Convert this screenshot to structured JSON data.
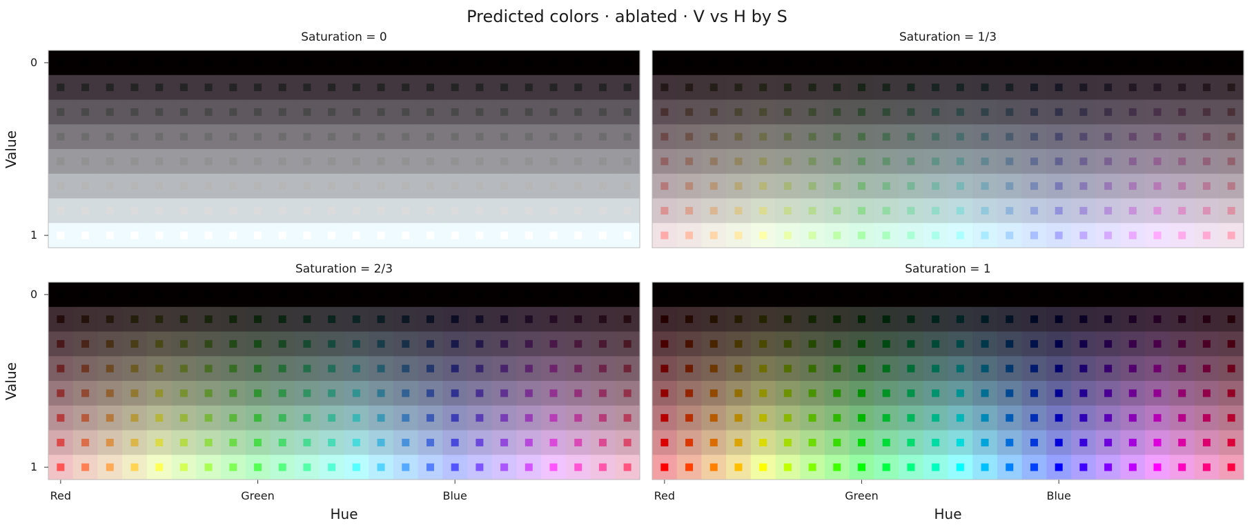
{
  "figure_title": "Predicted colors · ablated · V vs H by S",
  "chart_data": [
    {
      "type": "heatmap",
      "title": "Saturation = 0",
      "saturation": 0,
      "xlabel": "",
      "ylabel": "Value",
      "x_ticks": [
        "Red",
        "Green",
        "Blue"
      ],
      "y_ticks": [
        "0",
        "1"
      ],
      "hue_steps": 24,
      "value_steps": 8
    },
    {
      "type": "heatmap",
      "title": "Saturation = 1/3",
      "saturation": 0.3333,
      "xlabel": "",
      "ylabel": "",
      "x_ticks": [
        "Red",
        "Green",
        "Blue"
      ],
      "y_ticks": [
        "0",
        "1"
      ],
      "hue_steps": 24,
      "value_steps": 8
    },
    {
      "type": "heatmap",
      "title": "Saturation = 2/3",
      "saturation": 0.6667,
      "xlabel": "Hue",
      "ylabel": "Value",
      "x_ticks": [
        "Red",
        "Green",
        "Blue"
      ],
      "y_ticks": [
        "0",
        "1"
      ],
      "hue_steps": 24,
      "value_steps": 8
    },
    {
      "type": "heatmap",
      "title": "Saturation = 1",
      "saturation": 1,
      "xlabel": "Hue",
      "ylabel": "",
      "x_ticks": [
        "Red",
        "Green",
        "Blue"
      ],
      "y_ticks": [
        "0",
        "1"
      ],
      "hue_steps": 24,
      "value_steps": 8
    }
  ]
}
